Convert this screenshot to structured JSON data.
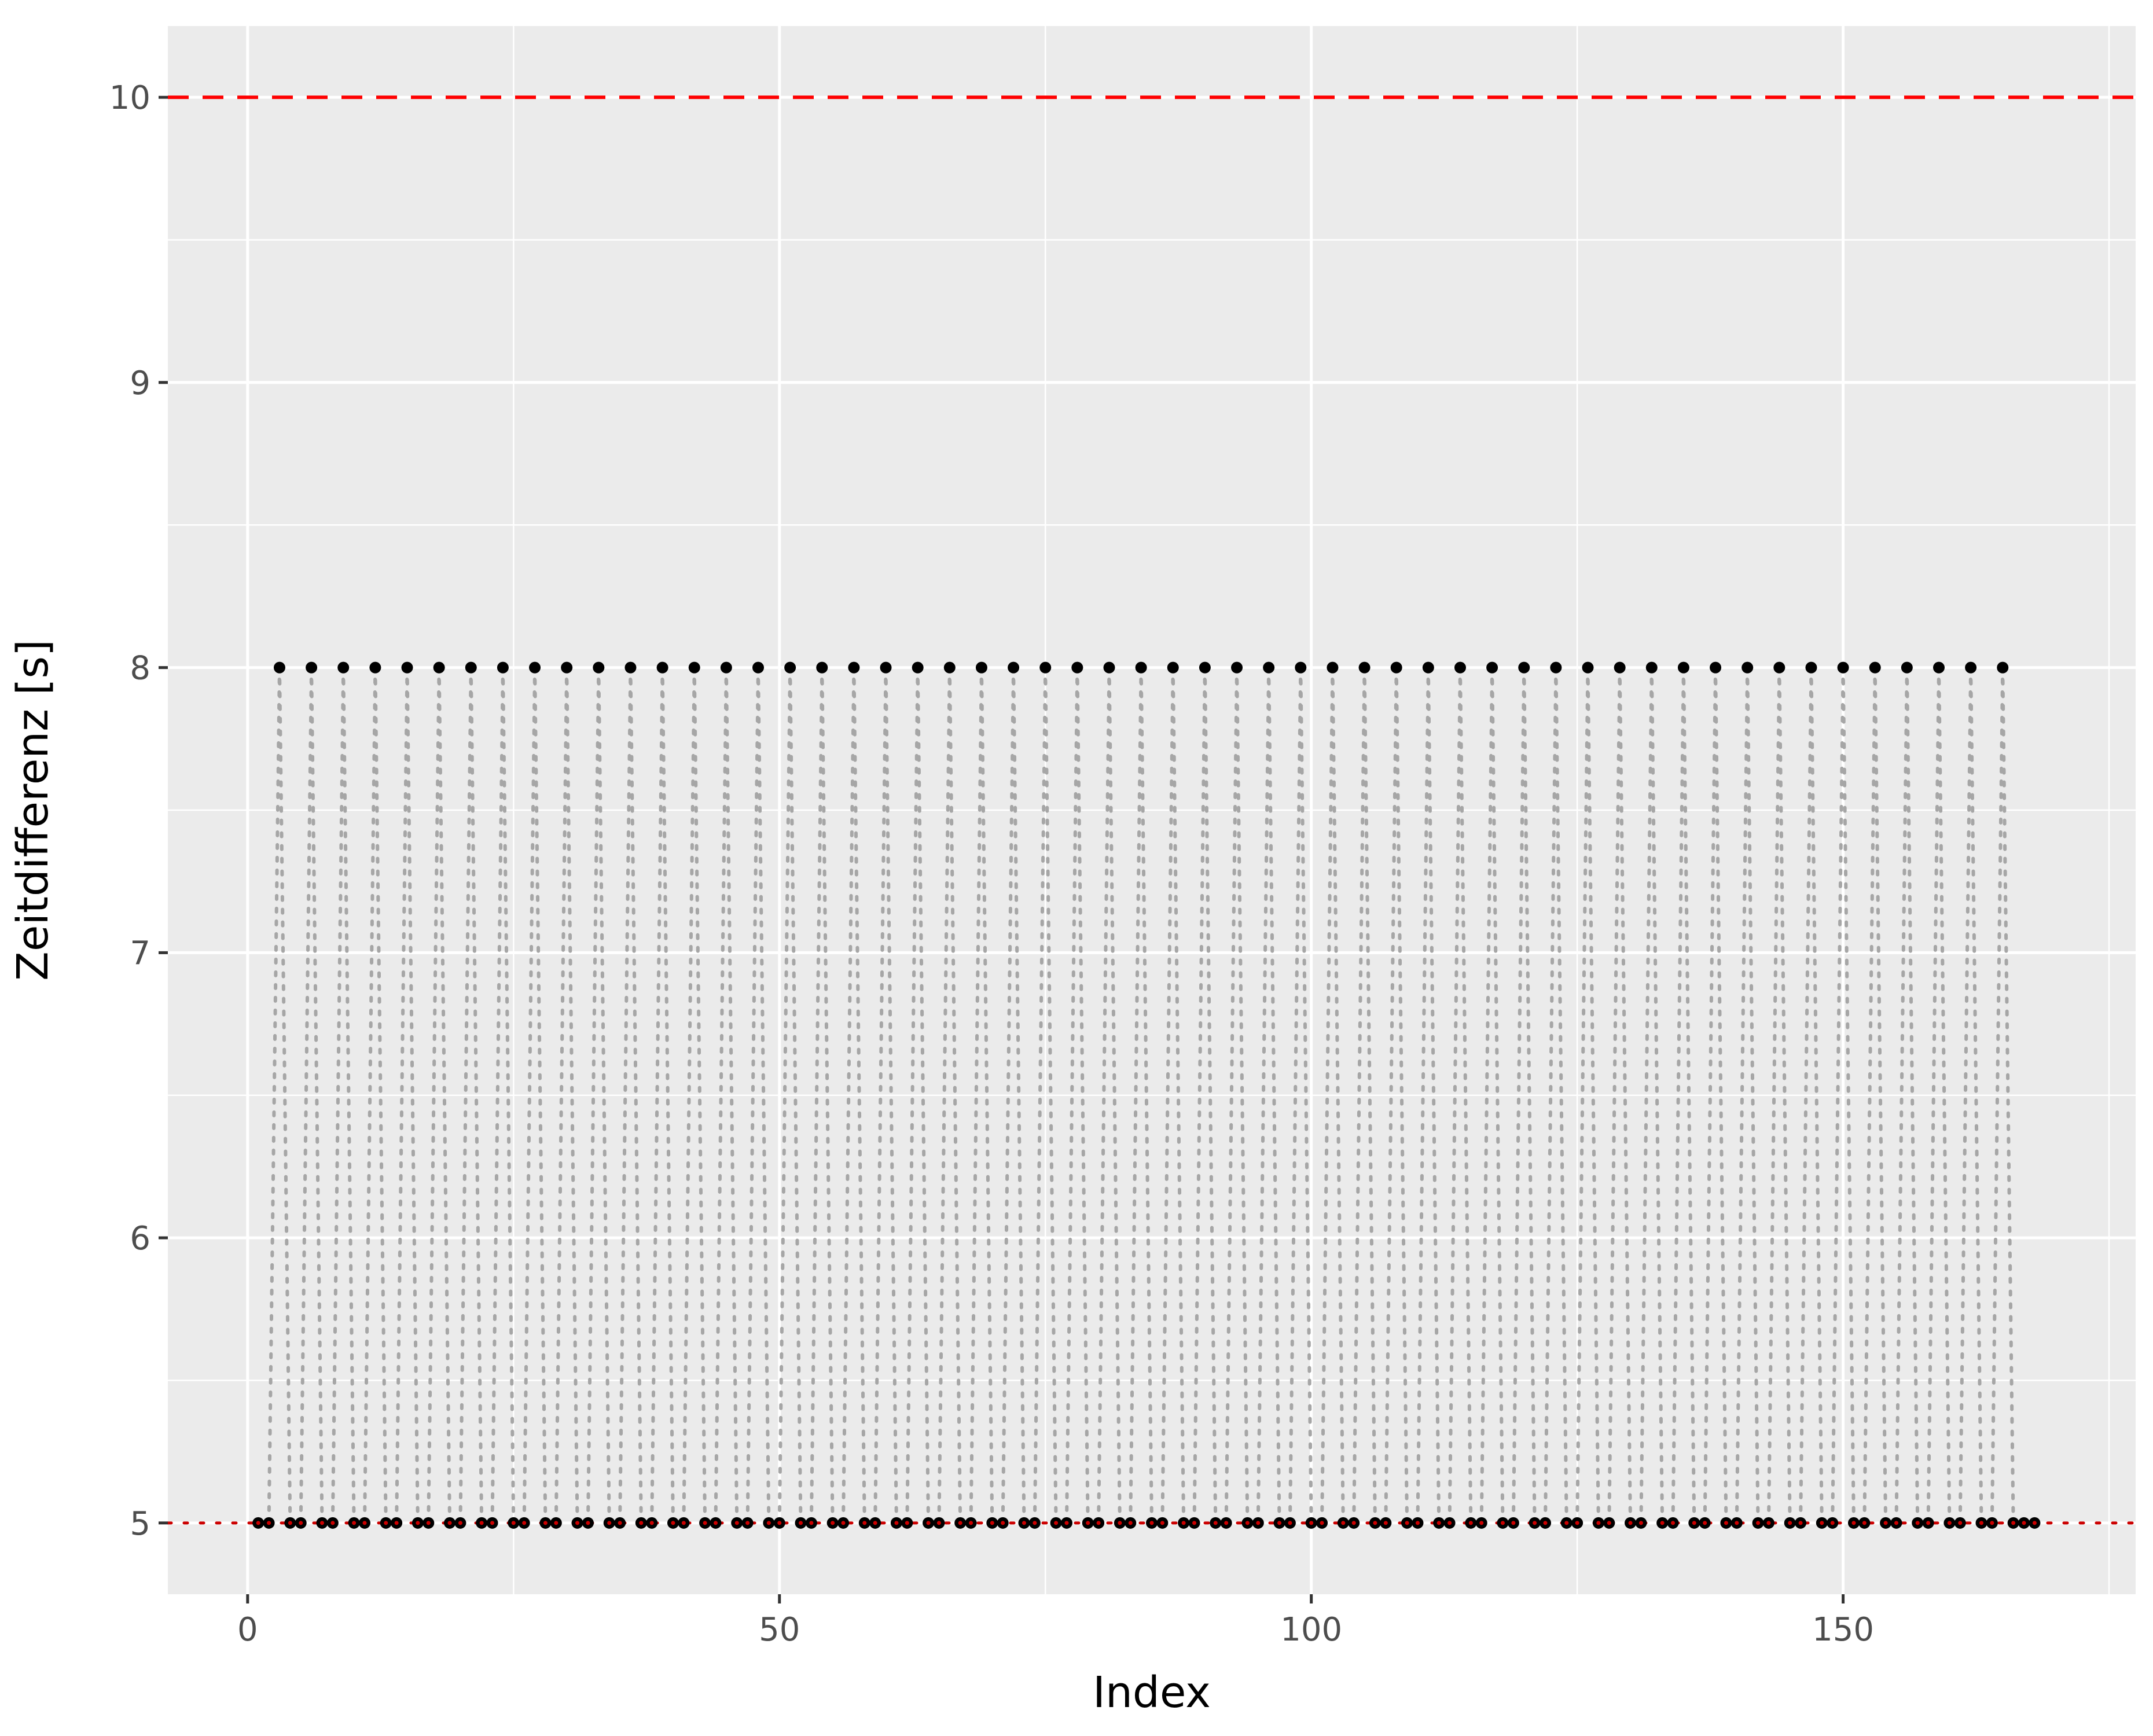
{
  "chart_data": {
    "type": "scatter",
    "title": "",
    "xlabel": "Index",
    "ylabel": "Zeitdifferenz [s]",
    "xlim": [
      -7.5,
      177.5
    ],
    "ylim": [
      4.75,
      10.25
    ],
    "x_ticks": [
      0,
      50,
      100,
      150
    ],
    "x_tick_labels": [
      "0",
      "50",
      "100",
      "150"
    ],
    "y_ticks": [
      5,
      6,
      7,
      8,
      9,
      10
    ],
    "y_tick_labels": [
      "5",
      "6",
      "7",
      "8",
      "9",
      "10"
    ],
    "grid": true,
    "legend": "none",
    "reference_lines": [
      {
        "orientation": "horizontal",
        "y": 10,
        "style": "dashed",
        "color": "#ff0000"
      },
      {
        "orientation": "horizontal",
        "y": 5,
        "style": "dotted",
        "color": "#cc0000"
      }
    ],
    "series": [
      {
        "x": [
          1,
          2,
          3,
          4,
          5,
          6,
          7,
          8,
          9,
          10,
          11,
          12,
          13,
          14,
          15,
          16,
          17,
          18,
          19,
          20,
          21,
          22,
          23,
          24,
          25,
          26,
          27,
          28,
          29,
          30,
          31,
          32,
          33,
          34,
          35,
          36,
          37,
          38,
          39,
          40,
          41,
          42,
          43,
          44,
          45,
          46,
          47,
          48,
          49,
          50,
          51,
          52,
          53,
          54,
          55,
          56,
          57,
          58,
          59,
          60,
          61,
          62,
          63,
          64,
          65,
          66,
          67,
          68,
          69,
          70,
          71,
          72,
          73,
          74,
          75,
          76,
          77,
          78,
          79,
          80,
          81,
          82,
          83,
          84,
          85,
          86,
          87,
          88,
          89,
          90,
          91,
          92,
          93,
          94,
          95,
          96,
          97,
          98,
          99,
          100,
          101,
          102,
          103,
          104,
          105,
          106,
          107,
          108,
          109,
          110,
          111,
          112,
          113,
          114,
          115,
          116,
          117,
          118,
          119,
          120,
          121,
          122,
          123,
          124,
          125,
          126,
          127,
          128,
          129,
          130,
          131,
          132,
          133,
          134,
          135,
          136,
          137,
          138,
          139,
          140,
          141,
          142,
          143,
          144,
          145,
          146,
          147,
          148,
          149,
          150,
          151,
          152,
          153,
          154,
          155,
          156,
          157,
          158,
          159,
          160,
          161,
          162,
          163,
          164,
          165,
          166,
          167,
          168
        ],
        "y": [
          5,
          5,
          8,
          5,
          5,
          8,
          5,
          5,
          8,
          5,
          5,
          8,
          5,
          5,
          8,
          5,
          5,
          8,
          5,
          5,
          8,
          5,
          5,
          8,
          5,
          5,
          8,
          5,
          5,
          8,
          5,
          5,
          8,
          5,
          5,
          8,
          5,
          5,
          8,
          5,
          5,
          8,
          5,
          5,
          8,
          5,
          5,
          8,
          5,
          5,
          8,
          5,
          5,
          8,
          5,
          5,
          8,
          5,
          5,
          8,
          5,
          5,
          8,
          5,
          5,
          8,
          5,
          5,
          8,
          5,
          5,
          8,
          5,
          5,
          8,
          5,
          5,
          8,
          5,
          5,
          8,
          5,
          5,
          8,
          5,
          5,
          8,
          5,
          5,
          8,
          5,
          5,
          8,
          5,
          5,
          8,
          5,
          5,
          8,
          5,
          5,
          8,
          5,
          5,
          8,
          5,
          5,
          8,
          5,
          5,
          8,
          5,
          5,
          8,
          5,
          5,
          8,
          5,
          5,
          8,
          5,
          5,
          8,
          5,
          5,
          8,
          5,
          5,
          8,
          5,
          5,
          8,
          5,
          5,
          8,
          5,
          5,
          8,
          5,
          5,
          8,
          5,
          5,
          8,
          5,
          5,
          8,
          5,
          5,
          8,
          5,
          5,
          8,
          5,
          5,
          8,
          5,
          5,
          8,
          5,
          5,
          8,
          5,
          5,
          8,
          5,
          5,
          5
        ]
      }
    ],
    "colors": {
      "panel_background": "#ebebeb",
      "grid": "#ffffff",
      "connector_line": "#a6a6a6",
      "point": "#000000",
      "point_highlight": "#cc0000"
    }
  }
}
